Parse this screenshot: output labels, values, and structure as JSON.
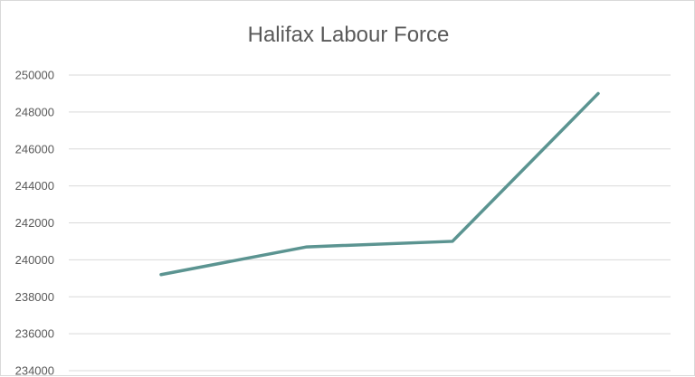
{
  "chart_data": {
    "type": "line",
    "title": "Halifax Labour Force",
    "xlabel": "",
    "ylabel": "",
    "categories": [
      "",
      "",
      "",
      ""
    ],
    "series": [
      {
        "values": [
          239200,
          240700,
          241000,
          249000
        ]
      }
    ],
    "ylim": [
      234000,
      250000
    ],
    "yticks": [
      "250000",
      "248000",
      "246000",
      "244000",
      "242000",
      "240000",
      "238000",
      "236000",
      "234000"
    ],
    "grid": true,
    "legend": "none",
    "colors": {
      "line": "#5b9491",
      "grid": "#d9d9d9",
      "text": "#595959"
    }
  }
}
